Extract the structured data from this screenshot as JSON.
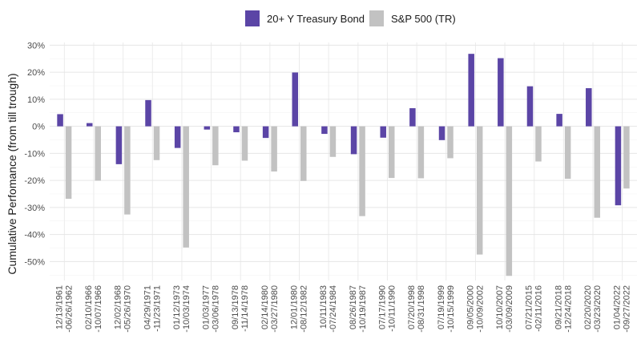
{
  "chart_data": {
    "type": "bar",
    "title": "",
    "xlabel": "",
    "ylabel": "Cumulative Perfomance (from till trough)",
    "ylim": [
      -57,
      31
    ],
    "yticks": [
      30,
      20,
      10,
      0,
      -10,
      -20,
      -30,
      -40,
      -50
    ],
    "ytick_labels": [
      "30%",
      "20%",
      "10%",
      "0%",
      "-10%",
      "-20%",
      "-30%",
      "-40%",
      "-50%"
    ],
    "grid": true,
    "legend_position": "top-center",
    "categories": [
      [
        "12/13/1961",
        "-06/26/1962"
      ],
      [
        "02/10/1966",
        "-10/07/1966"
      ],
      [
        "12/02/1968",
        "-05/26/1970"
      ],
      [
        "04/29/1971",
        "-11/23/1971"
      ],
      [
        "01/12/1973",
        "-10/03/1974"
      ],
      [
        "01/03/1977",
        "-03/06/1978"
      ],
      [
        "09/13/1978",
        "-11/14/1978"
      ],
      [
        "02/14/1980",
        "-03/27/1980"
      ],
      [
        "12/01/1980",
        "-08/12/1982"
      ],
      [
        "10/11/1983",
        "-07/24/1984"
      ],
      [
        "08/26/1987",
        "-10/19/1987"
      ],
      [
        "07/17/1990",
        "-10/11/1990"
      ],
      [
        "07/20/1998",
        "-08/31/1998"
      ],
      [
        "07/19/1999",
        "-10/15/1999"
      ],
      [
        "09/05/2000",
        "-10/09/2002"
      ],
      [
        "10/10/2007",
        "-03/09/2009"
      ],
      [
        "07/21/2015",
        "-02/11/2016"
      ],
      [
        "09/21/2018",
        "-12/24/2018"
      ],
      [
        "02/20/2020",
        "-03/23/2020"
      ],
      [
        "01/04/2022",
        "-09/27/2022"
      ]
    ],
    "series": [
      {
        "name": "20+ Y Treasury Bond",
        "color": "#5b45a6",
        "values": [
          4.5,
          1.2,
          -14.0,
          9.7,
          -8.0,
          -1.2,
          -2.2,
          -4.3,
          19.9,
          -2.8,
          -10.3,
          -4.2,
          6.7,
          -5.1,
          26.8,
          25.2,
          14.8,
          4.6,
          14.1,
          -29.2
        ]
      },
      {
        "name": "S&P 500 (TR)",
        "color": "#c2c2c2",
        "values": [
          -26.8,
          -20.1,
          -32.6,
          -12.5,
          -44.8,
          -14.4,
          -12.7,
          -16.7,
          -20.2,
          -11.3,
          -33.2,
          -19.1,
          -19.2,
          -11.8,
          -47.4,
          -55.3,
          -13.0,
          -19.4,
          -33.8,
          -23.0
        ]
      }
    ]
  }
}
